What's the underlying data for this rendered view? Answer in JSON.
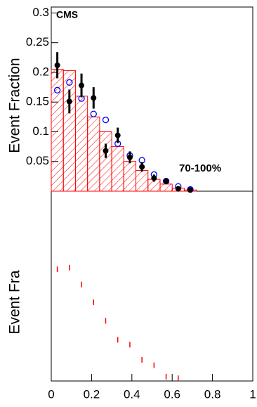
{
  "chart_data": [
    {
      "type": "hist_points",
      "y_label": "Event Fraction",
      "experiment": "CMS",
      "annotation": "70-100%",
      "bins": [
        0,
        0.06,
        0.12,
        0.18,
        0.24,
        0.3,
        0.36,
        0.42,
        0.48,
        0.54,
        0.6,
        0.66,
        0.72
      ],
      "x": [
        0.03,
        0.09,
        0.15,
        0.21,
        0.27,
        0.33,
        0.39,
        0.45,
        0.51,
        0.57,
        0.63,
        0.69
      ],
      "series": [
        {
          "kind": "hist",
          "color": "#ff0000",
          "values": [
            0.205,
            0.203,
            0.16,
            0.125,
            0.1,
            0.075,
            0.05,
            0.035,
            0.02,
            0.012,
            0.005,
            0.002
          ]
        },
        {
          "kind": "open",
          "color": "#0000ff",
          "values": [
            0.17,
            0.183,
            0.156,
            0.13,
            0.12,
            0.08,
            0.06,
            0.052,
            0.028,
            0.017,
            0.008,
            0.003
          ]
        },
        {
          "kind": "filled",
          "color": "#000000",
          "values": [
            0.212,
            0.151,
            0.178,
            0.157,
            0.068,
            0.094,
            0.057,
            0.041,
            0.022,
            0.017,
            0.004,
            0.002
          ],
          "errors": [
            0.022,
            0.02,
            0.02,
            0.018,
            0.012,
            0.013,
            0.01,
            0.008,
            0.006,
            0.005,
            0.003,
            0.002
          ]
        }
      ],
      "xlim": [
        0,
        1
      ],
      "ylim": [
        0,
        0.31
      ],
      "yticks": [
        0.05,
        0.1,
        0.15,
        0.2,
        0.25,
        0.3
      ]
    },
    {
      "type": "dashes",
      "y_label": "Event Fra",
      "color": "#ff0000",
      "x": [
        0.03,
        0.09,
        0.15,
        0.21,
        0.27,
        0.33,
        0.39,
        0.45,
        0.51,
        0.57,
        0.63
      ],
      "values": [
        0.206,
        0.209,
        0.178,
        0.145,
        0.111,
        0.076,
        0.067,
        0.039,
        0.029,
        0.008,
        0.005
      ],
      "xlim": [
        0,
        1
      ],
      "ylim": [
        0,
        0.35
      ],
      "xticks": [
        0,
        0.2,
        0.4,
        0.6,
        0.8,
        1
      ]
    }
  ]
}
